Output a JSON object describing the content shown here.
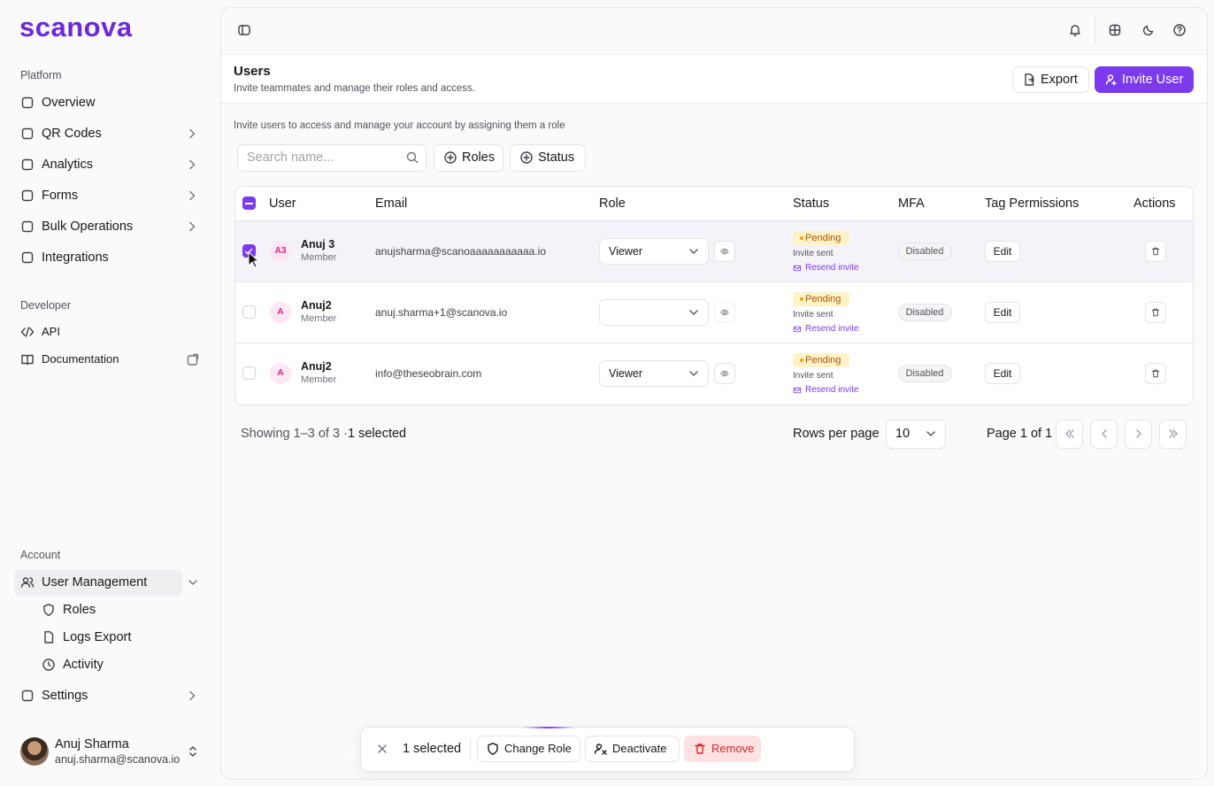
{
  "sidebar": {
    "logo": "scanova",
    "platform": {
      "title": "Platform",
      "items": [
        "Overview",
        "QR Codes",
        "Analytics",
        "Forms",
        "Bulk Operations",
        "Integrations"
      ]
    },
    "developer": {
      "title": "Developer",
      "items": [
        "API",
        "Documentation"
      ]
    },
    "account": {
      "title": "Account",
      "item": "User Management",
      "sub_items": [
        "Roles",
        "Logs Export",
        "Activity"
      ],
      "settings": "Settings"
    },
    "user": {
      "name": "Anuj Sharma",
      "email": "anuj.sharma@scanova.io"
    }
  },
  "header": {
    "title": "Users",
    "subtitle": "Invite teammates and manage their roles and access.",
    "export": "Export",
    "invite": "Invite User"
  },
  "intro": "Invite users to access and manage your account by assigning them a role",
  "filters": {
    "search_placeholder": "Search name...",
    "buttons": [
      "Roles",
      "Status"
    ]
  },
  "table": {
    "columns": [
      "User",
      "Email",
      "Role",
      "Status",
      "MFA",
      "Tag Permissions",
      "Actions"
    ],
    "rows": [
      {
        "initials": "A3",
        "name": "Anuj 3",
        "member": "Member",
        "email": "anujsharma@scanoaaaaaaaaaaa.io",
        "role": "Viewer",
        "status": "Pending",
        "note": "Invite sent",
        "resend": "Resend invite",
        "mfa": "Disabled",
        "tag": "Edit"
      },
      {
        "initials": "A",
        "name": "Anuj2",
        "member": "Member",
        "email": "anuj.sharma+1@scanova.io",
        "status": "Pending",
        "note": "Invite sent",
        "resend": "Resend invite",
        "mfa": "Disabled",
        "tag": "Edit"
      },
      {
        "initials": "A",
        "name": "Anuj2",
        "member": "Member",
        "email": "info@theseobrain.com",
        "role": "Viewer",
        "status": "Pending",
        "note": "Invite sent",
        "resend": "Resend invite",
        "mfa": "Disabled",
        "tag": "Edit"
      }
    ]
  },
  "footer": {
    "showing": "Showing 1–3 of 3 ·",
    "selected": "1 selected",
    "rows_label": "Rows per page",
    "rows_per_page": 10,
    "page": "Page 1 of 1"
  },
  "bulk_bar": {
    "count": "1 selected",
    "change_role": "Change Role",
    "deactivate": "Deactivate",
    "remove": "Remove"
  }
}
